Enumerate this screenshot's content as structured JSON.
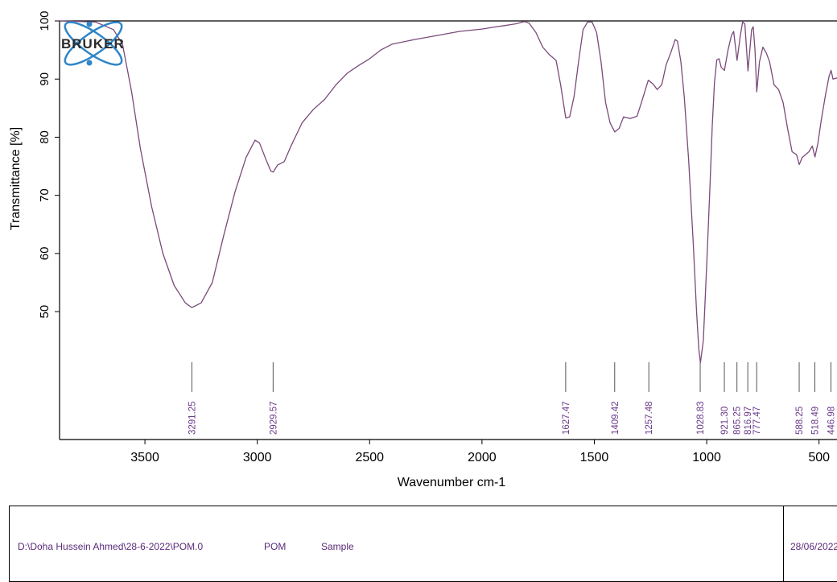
{
  "chart_data": {
    "type": "line",
    "logo_text": "BRUKER",
    "xlabel": "Wavenumber cm-1",
    "ylabel": "Transmittance [%]",
    "xlim": [
      3880,
      420
    ],
    "ylim": [
      28,
      100
    ],
    "x_reversed": true,
    "x_ticks": [
      {
        "value": 3500,
        "label": "3500"
      },
      {
        "value": 3000,
        "label": "3000"
      },
      {
        "value": 2500,
        "label": "2500"
      },
      {
        "value": 2000,
        "label": "2000"
      },
      {
        "value": 1500,
        "label": "1500"
      },
      {
        "value": 1000,
        "label": "1000"
      },
      {
        "value": 500,
        "label": "500"
      }
    ],
    "y_ticks": [
      {
        "value": 100,
        "label": "100"
      },
      {
        "value": 90,
        "label": "90"
      },
      {
        "value": 80,
        "label": "80"
      },
      {
        "value": 70,
        "label": "70"
      },
      {
        "value": 60,
        "label": "60"
      },
      {
        "value": 50,
        "label": "50"
      }
    ],
    "peak_labels": [
      {
        "x": 3291.25,
        "label": "3291.25"
      },
      {
        "x": 2929.57,
        "label": "2929.57"
      },
      {
        "x": 1627.47,
        "label": "1627.47"
      },
      {
        "x": 1409.42,
        "label": "1409.42"
      },
      {
        "x": 1257.48,
        "label": "1257.48"
      },
      {
        "x": 1028.83,
        "label": "1028.83"
      },
      {
        "x": 921.3,
        "label": "921.30"
      },
      {
        "x": 865.25,
        "label": "865.25"
      },
      {
        "x": 816.97,
        "label": "816.97"
      },
      {
        "x": 777.47,
        "label": "777.47"
      },
      {
        "x": 588.25,
        "label": "588.25"
      },
      {
        "x": 518.49,
        "label": "518.49"
      },
      {
        "x": 446.98,
        "label": "446.98"
      }
    ],
    "series": [
      {
        "color": "#7a4a7a",
        "points": [
          [
            3880,
            100
          ],
          [
            3720,
            99.8
          ],
          [
            3640,
            98.5
          ],
          [
            3600,
            96
          ],
          [
            3560,
            88
          ],
          [
            3520,
            78
          ],
          [
            3470,
            68
          ],
          [
            3420,
            60
          ],
          [
            3370,
            54.5
          ],
          [
            3320,
            51.5
          ],
          [
            3291,
            50.7
          ],
          [
            3250,
            51.5
          ],
          [
            3200,
            55
          ],
          [
            3150,
            63
          ],
          [
            3100,
            70.5
          ],
          [
            3050,
            76.5
          ],
          [
            3010,
            79.5
          ],
          [
            2990,
            79
          ],
          [
            2960,
            76
          ],
          [
            2940,
            74.2
          ],
          [
            2929,
            74
          ],
          [
            2910,
            75.2
          ],
          [
            2880,
            75.8
          ],
          [
            2850,
            78.5
          ],
          [
            2800,
            82.5
          ],
          [
            2750,
            84.8
          ],
          [
            2700,
            86.5
          ],
          [
            2650,
            89
          ],
          [
            2600,
            91
          ],
          [
            2550,
            92.3
          ],
          [
            2500,
            93.5
          ],
          [
            2450,
            95
          ],
          [
            2400,
            96
          ],
          [
            2300,
            96.8
          ],
          [
            2200,
            97.5
          ],
          [
            2100,
            98.2
          ],
          [
            2000,
            98.6
          ],
          [
            1950,
            98.9
          ],
          [
            1900,
            99.2
          ],
          [
            1850,
            99.5
          ],
          [
            1810,
            99.9
          ],
          [
            1790,
            99.6
          ],
          [
            1760,
            98
          ],
          [
            1730,
            95.5
          ],
          [
            1700,
            94.2
          ],
          [
            1670,
            93.2
          ],
          [
            1650,
            89
          ],
          [
            1627,
            83.3
          ],
          [
            1610,
            83.5
          ],
          [
            1590,
            87
          ],
          [
            1570,
            93
          ],
          [
            1550,
            98.5
          ],
          [
            1530,
            99.8
          ],
          [
            1510,
            99.8
          ],
          [
            1490,
            98
          ],
          [
            1470,
            93
          ],
          [
            1450,
            86
          ],
          [
            1430,
            82.5
          ],
          [
            1409,
            80.9
          ],
          [
            1390,
            81.5
          ],
          [
            1370,
            83.5
          ],
          [
            1340,
            83.2
          ],
          [
            1310,
            83.6
          ],
          [
            1290,
            86
          ],
          [
            1260,
            89.8
          ],
          [
            1240,
            89.2
          ],
          [
            1220,
            88.2
          ],
          [
            1200,
            89
          ],
          [
            1180,
            92.5
          ],
          [
            1160,
            94.5
          ],
          [
            1140,
            96.8
          ],
          [
            1130,
            96.5
          ],
          [
            1115,
            93
          ],
          [
            1100,
            87
          ],
          [
            1080,
            76
          ],
          [
            1060,
            62
          ],
          [
            1045,
            50
          ],
          [
            1035,
            43.5
          ],
          [
            1028,
            41.2
          ],
          [
            1015,
            45
          ],
          [
            1000,
            58
          ],
          [
            985,
            72
          ],
          [
            975,
            82
          ],
          [
            965,
            89.5
          ],
          [
            955,
            93.3
          ],
          [
            945,
            93.5
          ],
          [
            935,
            92
          ],
          [
            921,
            91.5
          ],
          [
            905,
            95
          ],
          [
            890,
            97.5
          ],
          [
            880,
            98.2
          ],
          [
            865,
            93.2
          ],
          [
            850,
            97.5
          ],
          [
            840,
            99.8
          ],
          [
            830,
            99.5
          ],
          [
            816,
            91.4
          ],
          [
            808,
            95
          ],
          [
            800,
            98.5
          ],
          [
            793,
            99
          ],
          [
            785,
            95
          ],
          [
            777,
            87.8
          ],
          [
            765,
            93
          ],
          [
            750,
            95.5
          ],
          [
            735,
            94.5
          ],
          [
            720,
            93
          ],
          [
            700,
            89
          ],
          [
            680,
            88.2
          ],
          [
            660,
            86
          ],
          [
            640,
            81.5
          ],
          [
            620,
            77.5
          ],
          [
            600,
            77
          ],
          [
            588,
            75.3
          ],
          [
            575,
            76.5
          ],
          [
            560,
            77
          ],
          [
            545,
            77.5
          ],
          [
            530,
            78.5
          ],
          [
            518,
            76.6
          ],
          [
            505,
            79
          ],
          [
            490,
            83
          ],
          [
            470,
            87.5
          ],
          [
            455,
            90.5
          ],
          [
            446,
            91.5
          ],
          [
            438,
            90
          ],
          [
            420,
            90.2
          ]
        ]
      }
    ]
  },
  "footer": {
    "path": "D:\\Doha Hussein Ahmed\\28-6-2022\\POM.0",
    "sample_name": "POM",
    "sample_type": "Sample",
    "date": "28/06/2022"
  }
}
